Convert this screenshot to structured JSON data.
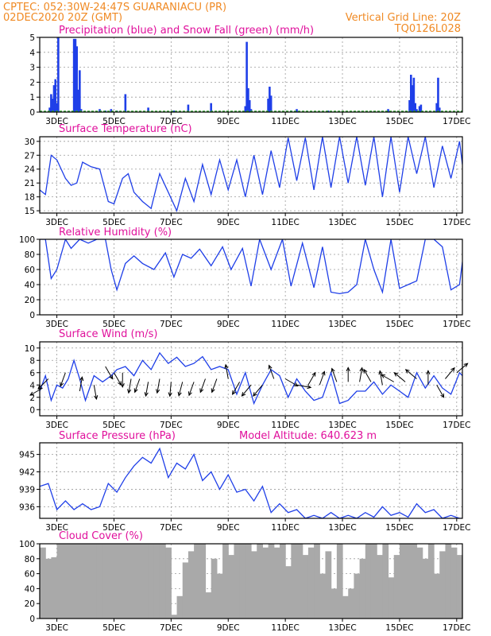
{
  "header": {
    "line1": "CPTEC:   052:30W-24:47S   GUARANIACU (PR)",
    "line2_left": "02DEC2020 20Z (GMT)",
    "line2_right": "Vertical Grid Line: 20Z",
    "line3_right": "TQ0126L028"
  },
  "colors": {
    "header": "#f08a24",
    "panel_title": "#e0109c",
    "precip": "#1f3fe8",
    "snow": "#2ca02c",
    "line": "#1f3fe8",
    "cloud": "#a9a9a9",
    "wind_arrow": "#000000"
  },
  "x_axis": {
    "ticks": [
      "3DEC",
      "5DEC",
      "7DEC",
      "9DEC",
      "11DEC",
      "13DEC",
      "15DEC",
      "17DEC"
    ],
    "tick_days": [
      3,
      5,
      7,
      9,
      11,
      13,
      15,
      17
    ],
    "start_day": 2.4,
    "end_day": 17.2
  },
  "chart_data": [
    {
      "type": "bar",
      "title": "Precipitation (blue) and Snow Fall (green) (mm/h)",
      "ylim": [
        0,
        5
      ],
      "yticks": [
        0,
        1,
        2,
        3,
        4,
        5
      ],
      "grid": true,
      "series": [
        {
          "name": "Precipitation",
          "x": [
            2.75,
            2.8,
            2.85,
            2.9,
            2.95,
            3.0,
            3.05,
            3.6,
            3.65,
            3.7,
            3.75,
            3.8,
            3.85,
            4.5,
            4.7,
            4.9,
            5.1,
            5.4,
            6.2,
            7.1,
            7.6,
            8.4,
            9.6,
            9.65,
            9.7,
            9.75,
            9.8,
            10.4,
            10.45,
            10.5,
            11.2,
            11.4,
            12.5,
            14.6,
            15.35,
            15.4,
            15.45,
            15.5,
            15.55,
            15.6,
            15.7,
            15.75,
            16.3,
            16.35,
            16.4
          ],
          "values": [
            0.3,
            1.2,
            0.9,
            1.8,
            2.2,
            0.6,
            5.0,
            4.9,
            4.9,
            4.4,
            1.5,
            2.8,
            0.2,
            0.2,
            0.1,
            0.2,
            0.1,
            1.2,
            0.3,
            0.1,
            0.5,
            0.6,
            0.4,
            4.7,
            1.6,
            0.8,
            0.2,
            0.9,
            1.7,
            1.1,
            0.1,
            0.2,
            0.1,
            0.2,
            0.8,
            2.5,
            1.8,
            2.3,
            0.6,
            0.2,
            0.4,
            0.5,
            0.6,
            2.3,
            0.3
          ]
        },
        {
          "name": "Snow Fall",
          "x": [],
          "values": []
        }
      ]
    },
    {
      "type": "line",
      "title": "Surface Temperature (nC)",
      "ylim": [
        14.5,
        31
      ],
      "yticks": [
        15,
        18,
        21,
        24,
        27,
        30
      ],
      "grid": true,
      "x": [
        2.4,
        2.6,
        2.8,
        3.0,
        3.3,
        3.5,
        3.7,
        3.9,
        4.2,
        4.5,
        4.8,
        5.0,
        5.3,
        5.5,
        5.7,
        6.0,
        6.3,
        6.6,
        6.9,
        7.2,
        7.5,
        7.8,
        8.1,
        8.4,
        8.7,
        9.0,
        9.3,
        9.6,
        9.9,
        10.2,
        10.5,
        10.8,
        11.1,
        11.4,
        11.7,
        12.0,
        12.3,
        12.6,
        12.9,
        13.2,
        13.5,
        13.8,
        14.1,
        14.4,
        14.7,
        15.0,
        15.3,
        15.6,
        15.9,
        16.2,
        16.5,
        16.8,
        17.1,
        17.2
      ],
      "values": [
        19.5,
        18.5,
        27,
        26,
        22,
        20.5,
        21,
        25.5,
        24.5,
        24,
        17,
        16.5,
        22,
        23,
        19,
        17,
        15.5,
        23,
        19,
        15,
        22,
        17,
        25,
        18.5,
        26,
        19.5,
        26,
        18,
        27,
        18.5,
        28,
        20,
        30.8,
        21.5,
        30.8,
        19.5,
        31,
        20,
        31,
        21,
        31,
        20.5,
        31,
        18,
        31,
        19,
        31,
        23,
        31,
        20,
        29,
        22,
        30,
        25
      ]
    },
    {
      "type": "line",
      "title": "Relative Humidity (%)",
      "ylim": [
        0,
        100
      ],
      "yticks": [
        0,
        20,
        40,
        60,
        80,
        100
      ],
      "grid": true,
      "x": [
        2.4,
        2.6,
        2.8,
        3.0,
        3.3,
        3.5,
        3.8,
        4.1,
        4.4,
        4.7,
        4.9,
        5.1,
        5.4,
        5.7,
        6.0,
        6.4,
        6.8,
        7.1,
        7.4,
        7.7,
        8.0,
        8.4,
        8.8,
        9.1,
        9.5,
        9.8,
        10.1,
        10.5,
        10.9,
        11.2,
        11.6,
        12.0,
        12.3,
        12.6,
        12.9,
        13.2,
        13.5,
        13.8,
        14.1,
        14.4,
        14.7,
        15.0,
        15.3,
        15.6,
        15.9,
        16.2,
        16.5,
        16.8,
        17.1,
        17.2
      ],
      "values": [
        100,
        100,
        48,
        60,
        100,
        88,
        100,
        95,
        100,
        100,
        60,
        33,
        68,
        78,
        68,
        60,
        82,
        50,
        80,
        75,
        87,
        65,
        90,
        60,
        88,
        38,
        100,
        60,
        100,
        38,
        95,
        36,
        90,
        30,
        28,
        30,
        40,
        100,
        60,
        30,
        100,
        35,
        40,
        45,
        100,
        100,
        90,
        33,
        40,
        70
      ]
    },
    {
      "type": "line",
      "title": "Surface Wind (m/s)",
      "ylim": [
        -1,
        11
      ],
      "yticks": [
        0,
        2,
        4,
        6,
        8,
        10
      ],
      "grid": true,
      "x": [
        2.4,
        2.6,
        2.8,
        3.0,
        3.2,
        3.4,
        3.6,
        3.8,
        4.0,
        4.3,
        4.6,
        4.9,
        5.1,
        5.4,
        5.7,
        6.0,
        6.3,
        6.6,
        6.9,
        7.2,
        7.5,
        7.8,
        8.1,
        8.4,
        8.7,
        9.0,
        9.3,
        9.6,
        9.9,
        10.2,
        10.5,
        10.8,
        11.1,
        11.4,
        11.7,
        12.0,
        12.3,
        12.6,
        12.9,
        13.2,
        13.5,
        13.8,
        14.1,
        14.4,
        14.7,
        15.0,
        15.3,
        15.6,
        15.9,
        16.2,
        16.5,
        16.8,
        17.1,
        17.2
      ],
      "values": [
        3,
        5.5,
        1.5,
        4,
        3.5,
        5,
        8,
        5,
        1.5,
        5.5,
        4.5,
        5.5,
        6.5,
        7,
        5.5,
        8,
        6.5,
        9.2,
        7.5,
        8.5,
        7,
        7.5,
        8.6,
        6.5,
        7,
        6.5,
        2.5,
        6,
        1,
        4,
        6.5,
        5.5,
        2,
        5,
        3,
        1.5,
        2,
        6,
        1,
        1.5,
        3,
        3,
        4.5,
        2.5,
        4,
        3,
        2,
        6,
        3.5,
        5.5,
        3.5,
        2.5,
        6,
        5.5
      ],
      "arrows_x": [
        2.5,
        2.7,
        3.3,
        3.8,
        4.3,
        4.7,
        5.0,
        5.3,
        5.6,
        5.9,
        6.2,
        6.6,
        7.0,
        7.4,
        7.8,
        8.2,
        8.6,
        9.0,
        9.4,
        9.8,
        10.2,
        10.6,
        11.0,
        11.4,
        11.8,
        12.2,
        12.8,
        13.2,
        13.6,
        14.0,
        14.4,
        14.8,
        15.2,
        15.6,
        16.0,
        16.3,
        16.6,
        17.0
      ],
      "arrows_speed": [
        3.5,
        5,
        6,
        3,
        4,
        7,
        6,
        6,
        5,
        5,
        4.5,
        5,
        4.5,
        4.5,
        4.5,
        5,
        5,
        5,
        4.5,
        4,
        4,
        5,
        5,
        4,
        4,
        4,
        4.5,
        4.5,
        4.5,
        4.5,
        4,
        4.5,
        4.5,
        5,
        4,
        4,
        5,
        6
      ],
      "arrows_dir_deg": [
        210,
        225,
        250,
        80,
        280,
        300,
        300,
        270,
        260,
        250,
        260,
        260,
        265,
        255,
        250,
        250,
        250,
        100,
        240,
        230,
        230,
        110,
        330,
        350,
        60,
        70,
        110,
        90,
        80,
        120,
        100,
        150,
        140,
        140,
        90,
        300,
        50,
        40
      ]
    },
    {
      "type": "line",
      "title": "Surface Pressure (hPa)",
      "subtitle": "Model Altitude: 640.623 m",
      "ylim": [
        934,
        947
      ],
      "yticks": [
        936,
        939,
        942,
        945
      ],
      "grid": true,
      "x": [
        2.4,
        2.7,
        3.0,
        3.3,
        3.6,
        3.9,
        4.2,
        4.5,
        4.8,
        5.1,
        5.4,
        5.7,
        6.0,
        6.3,
        6.6,
        6.9,
        7.2,
        7.5,
        7.8,
        8.1,
        8.4,
        8.7,
        9.0,
        9.3,
        9.6,
        9.9,
        10.2,
        10.5,
        10.8,
        11.1,
        11.4,
        11.7,
        12.0,
        12.3,
        12.6,
        12.9,
        13.2,
        13.5,
        13.8,
        14.1,
        14.4,
        14.7,
        15.0,
        15.3,
        15.6,
        15.9,
        16.2,
        16.5,
        16.8,
        17.1,
        17.2
      ],
      "values": [
        939.5,
        940,
        935.5,
        937,
        935.5,
        936.5,
        935.5,
        936,
        940,
        938.5,
        941,
        943,
        944.5,
        943.5,
        946,
        941,
        943.5,
        942.5,
        945,
        940.5,
        942,
        939,
        941.5,
        938.5,
        939,
        937,
        939.5,
        935,
        936.5,
        935,
        935.5,
        934,
        934.5,
        934,
        935,
        934,
        934.5,
        934,
        935,
        934.2,
        936,
        934.5,
        935,
        934.2,
        936.5,
        935,
        935.5,
        934,
        934.5,
        934,
        934
      ]
    },
    {
      "type": "bar",
      "title": "Cloud Cover (%)",
      "ylim": [
        0,
        100
      ],
      "yticks": [
        0,
        20,
        40,
        60,
        80,
        100
      ],
      "grid": true,
      "x": [
        2.4,
        2.6,
        2.8,
        3.0,
        3.2,
        3.4,
        3.6,
        3.8,
        4.0,
        4.2,
        4.4,
        4.6,
        4.8,
        5.0,
        5.2,
        5.4,
        5.6,
        5.8,
        6.0,
        6.2,
        6.4,
        6.6,
        6.8,
        7.0,
        7.2,
        7.4,
        7.6,
        7.8,
        8.0,
        8.2,
        8.4,
        8.6,
        8.8,
        9.0,
        9.2,
        9.4,
        9.6,
        9.8,
        10.0,
        10.2,
        10.4,
        10.6,
        10.8,
        11.0,
        11.2,
        11.4,
        11.6,
        11.8,
        12.0,
        12.2,
        12.4,
        12.6,
        12.8,
        13.0,
        13.2,
        13.4,
        13.6,
        13.8,
        14.0,
        14.2,
        14.4,
        14.6,
        14.8,
        15.0,
        15.2,
        15.4,
        15.6,
        15.8,
        16.0,
        16.2,
        16.4,
        16.6,
        16.8,
        17.0
      ],
      "values": [
        95,
        80,
        82,
        100,
        100,
        100,
        100,
        100,
        100,
        100,
        100,
        100,
        100,
        100,
        100,
        100,
        100,
        100,
        100,
        100,
        100,
        100,
        95,
        5,
        30,
        75,
        90,
        100,
        100,
        35,
        80,
        60,
        100,
        85,
        100,
        100,
        100,
        90,
        100,
        95,
        100,
        95,
        100,
        70,
        100,
        100,
        85,
        95,
        100,
        60,
        90,
        40,
        100,
        30,
        40,
        60,
        80,
        100,
        100,
        85,
        100,
        55,
        85,
        100,
        100,
        100,
        95,
        80,
        100,
        60,
        90,
        100,
        95,
        85
      ]
    }
  ]
}
